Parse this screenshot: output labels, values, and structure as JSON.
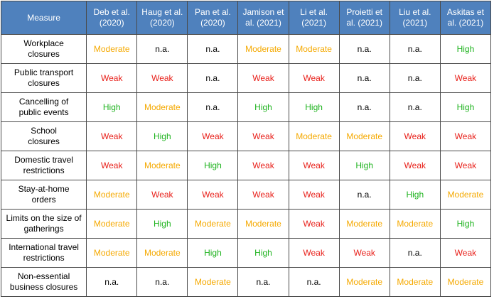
{
  "table": {
    "header_measure": "Measure",
    "studies": [
      "Deb et al.\n(2020)",
      "Haug et al.\n(2020)",
      "Pan et al.\n(2020)",
      "Jamison et\nal. (2021)",
      "Li et al.\n(2021)",
      "Proietti et\nal. (2021)",
      "Liu et al.\n(2021)",
      "Askitas et\nal. (2021)"
    ],
    "rows": [
      {
        "measure": "Workplace\nclosures",
        "values": [
          "Moderate",
          "n.a.",
          "n.a.",
          "Moderate",
          "Moderate",
          "n.a.",
          "n.a.",
          "High"
        ]
      },
      {
        "measure": "Public transport\nclosures",
        "values": [
          "Weak",
          "Weak",
          "n.a.",
          "Weak",
          "Weak",
          "n.a.",
          "n.a.",
          "Weak"
        ]
      },
      {
        "measure": "Cancelling of\npublic events",
        "values": [
          "High",
          "Moderate",
          "n.a.",
          "High",
          "High",
          "n.a.",
          "n.a.",
          "High"
        ]
      },
      {
        "measure": "School\nclosures",
        "values": [
          "Weak",
          "High",
          "Weak",
          "Weak",
          "Moderate",
          "Moderate",
          "Weak",
          "Weak"
        ]
      },
      {
        "measure": "Domestic travel\nrestrictions",
        "values": [
          "Weak",
          "Moderate",
          "High",
          "Weak",
          "Weak",
          "High",
          "Weak",
          "Weak"
        ]
      },
      {
        "measure": "Stay-at-home\norders",
        "values": [
          "Moderate",
          "Weak",
          "Weak",
          "Weak",
          "Weak",
          "n.a.",
          "High",
          "Moderate"
        ]
      },
      {
        "measure": "Limits on the size of\ngatherings",
        "values": [
          "Moderate",
          "High",
          "Moderate",
          "Moderate",
          "Weak",
          "Moderate",
          "Moderate",
          "High"
        ]
      },
      {
        "measure": "International travel\nrestrictions",
        "values": [
          "Moderate",
          "Moderate",
          "High",
          "High",
          "Weak",
          "Weak",
          "n.a.",
          "Weak"
        ]
      },
      {
        "measure": "Non-essential\nbusiness closures",
        "values": [
          "n.a.",
          "n.a.",
          "Moderate",
          "n.a.",
          "n.a.",
          "Moderate",
          "Moderate",
          "Moderate"
        ]
      }
    ]
  },
  "colors": {
    "header_bg": "#4f81bd",
    "High": "#1fb31f",
    "Moderate": "#f5a900",
    "Weak": "#e8201a",
    "n.a.": "#000000"
  }
}
